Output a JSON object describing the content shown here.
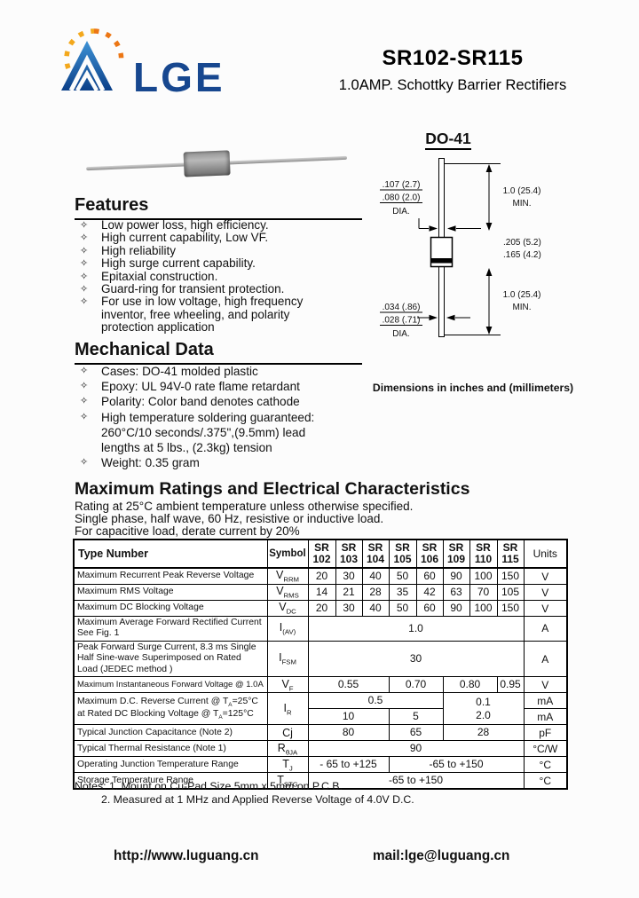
{
  "bullet_char": "✧",
  "header": {
    "brand": "LGE",
    "part_range": "SR102-SR115",
    "subtitle": "1.0AMP. Schottky Barrier Rectifiers"
  },
  "package": {
    "name": "DO-41",
    "caption": "Dimensions in inches and (millimeters)",
    "dims": {
      "body_dia_max": ".107 (2.7)",
      "body_dia_min": ".080 (2.0)",
      "dia": "DIA.",
      "lead_length": "1.0 (25.4)",
      "min": "MIN.",
      "body_len_max": ".205 (5.2)",
      "body_len_min": ".165 (4.2)",
      "lead_dia_max": ".034 (.86)",
      "lead_dia_min": ".028 (.71)"
    }
  },
  "features": {
    "title": "Features",
    "items": [
      "Low power loss, high efficiency.",
      "High current capability, Low VF.",
      "High reliability",
      "High surge current capability.",
      "Epitaxial construction.",
      "Guard-ring for transient protection.",
      "For use in low voltage, high frequency inventor, free wheeling, and polarity protection application"
    ]
  },
  "mechanical": {
    "title": "Mechanical Data",
    "items": [
      "Cases: DO-41 molded plastic",
      "Epoxy: UL 94V-0 rate flame retardant",
      "Polarity: Color band denotes cathode",
      "High temperature soldering guaranteed: 260°C/10 seconds/.375\",(9.5mm) lead lengths at 5 lbs., (2.3kg) tension",
      "Weight: 0.35 gram"
    ]
  },
  "ratings": {
    "title": "Maximum Ratings and Electrical Characteristics",
    "conditions": [
      "Rating at 25°C ambient temperature unless otherwise specified.",
      "Single phase, half wave, 60 Hz, resistive or inductive load.",
      "For capacitive load, derate current by 20%"
    ],
    "table": {
      "headers": {
        "type": "Type Number",
        "symbol": "Symbol",
        "units": "Units"
      },
      "parts": [
        "SR\n102",
        "SR\n103",
        "SR\n104",
        "SR\n105",
        "SR\n106",
        "SR\n109",
        "SR\n110",
        "SR\n115"
      ],
      "rows": [
        {
          "label": "Maximum Recurrent Peak Reverse Voltage",
          "symbol": "V_{RRM}",
          "cells": [
            {
              "text": "20"
            },
            {
              "text": "30"
            },
            {
              "text": "40"
            },
            {
              "text": "50"
            },
            {
              "text": "60"
            },
            {
              "text": "90"
            },
            {
              "text": "100"
            },
            {
              "text": "150"
            }
          ],
          "unit": "V"
        },
        {
          "label": "Maximum RMS Voltage",
          "symbol": "V_{RMS}",
          "cells": [
            {
              "text": "14"
            },
            {
              "text": "21"
            },
            {
              "text": "28"
            },
            {
              "text": "35"
            },
            {
              "text": "42"
            },
            {
              "text": "63"
            },
            {
              "text": "70"
            },
            {
              "text": "105"
            }
          ],
          "unit": "V"
        },
        {
          "label": "Maximum DC Blocking Voltage",
          "symbol": "V_{DC}",
          "cells": [
            {
              "text": "20"
            },
            {
              "text": "30"
            },
            {
              "text": "40"
            },
            {
              "text": "50"
            },
            {
              "text": "60"
            },
            {
              "text": "90"
            },
            {
              "text": "100"
            },
            {
              "text": "150"
            }
          ],
          "unit": "V"
        },
        {
          "label": "Maximum Average Forward Rectified Current\nSee Fig. 1",
          "symbol": "I_{(AV)}",
          "cells": [
            {
              "text": "1.0",
              "span": 8
            }
          ],
          "unit": "A"
        },
        {
          "label": "Peak Forward Surge Current, 8.3 ms Single\nHalf Sine-wave Superimposed on Rated\nLoad (JEDEC method )",
          "symbol": "I_{FSM}",
          "cells": [
            {
              "text": "30",
              "span": 8
            }
          ],
          "unit": "A"
        },
        {
          "label": "Maximum Instantaneous Forward Voltage @ 1.0A",
          "symbol": "V_{F}",
          "small": true,
          "cells": [
            {
              "text": "0.55",
              "span": 3
            },
            {
              "text": "0.70",
              "span": 2
            },
            {
              "text": "0.80",
              "span": 2
            },
            {
              "text": "0.95",
              "span": 1
            }
          ],
          "unit": "V"
        },
        {
          "label": "Maximum D.C. Reverse Current @ T_{A}=25°C\nat Rated DC Blocking Voltage  @ T_{A}=125°C",
          "label_rowspan": 2,
          "symbol": "I_{R}",
          "symbol_rowspan": 2,
          "cells": [
            {
              "text": "0.5",
              "span": 5
            },
            {
              "text": "0.1\n2.0",
              "span": 3,
              "rowspan": 2
            }
          ],
          "unit": "mA"
        },
        {
          "cells": [
            {
              "text": "10",
              "span": 3
            },
            {
              "text": "5",
              "span": 2
            }
          ],
          "unit": "mA"
        },
        {
          "label": "Typical Junction Capacitance (Note 2)",
          "symbol": "Cj",
          "cells": [
            {
              "text": "80",
              "span": 3
            },
            {
              "text": "65",
              "span": 2
            },
            {
              "text": "28",
              "span": 3
            }
          ],
          "unit": "pF"
        },
        {
          "label": "Typical Thermal Resistance (Note 1)",
          "symbol": "R_{θJA}",
          "cells": [
            {
              "text": "90",
              "span": 8
            }
          ],
          "unit": "°C/W"
        },
        {
          "label": "Operating Junction Temperature Range",
          "symbol": "T_{J}",
          "cells": [
            {
              "text": "- 65 to +125",
              "span": 3
            },
            {
              "text": "-65 to +150",
              "span": 5
            }
          ],
          "unit": "°C"
        },
        {
          "label": "Storage Temperature Range",
          "symbol": "T_{STG}",
          "cells": [
            {
              "text": "-65 to +150",
              "span": 8
            }
          ],
          "unit": "°C"
        }
      ]
    },
    "notes": [
      "Notes: 1. Mount on Cu-Pad Size 5mm x 5mm on P.C.B.",
      "2. Measured at 1 MHz and Applied Reverse Voltage of 4.0V D.C."
    ]
  },
  "footer": {
    "website": "http://www.luguang.cn",
    "email": "mail:lge@luguang.cn"
  }
}
